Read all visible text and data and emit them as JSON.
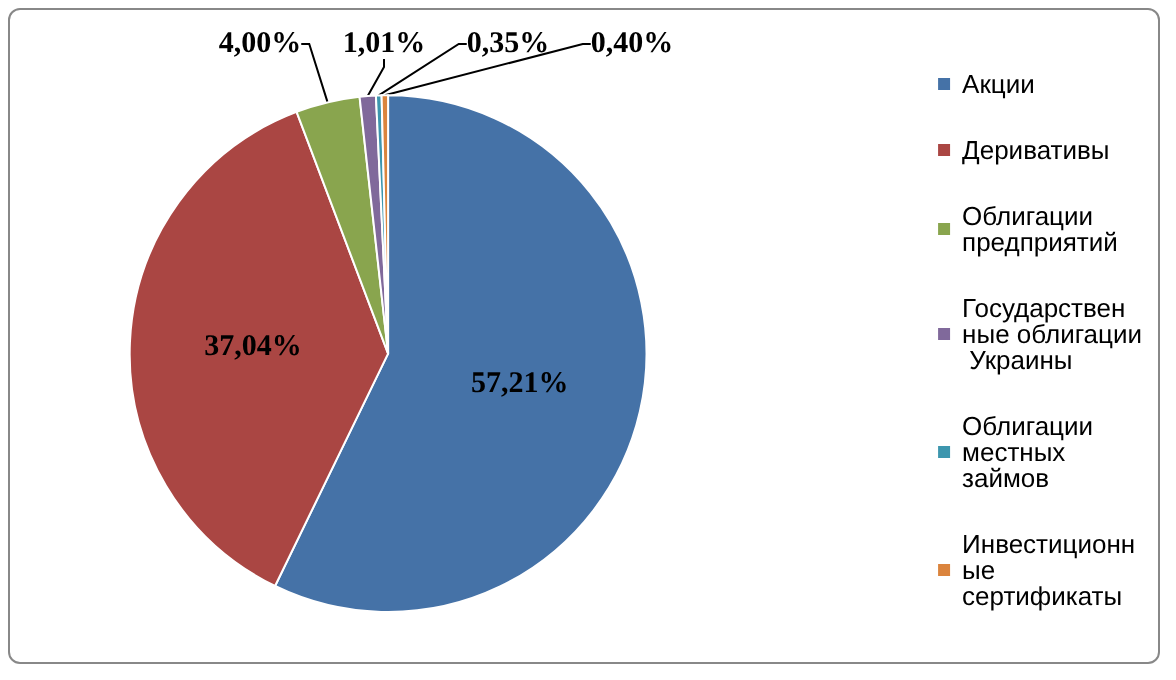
{
  "chart_data": {
    "type": "pie",
    "categories": [
      "Акции",
      "Деривативы",
      "Облигации предприятий",
      "Государственные облигации Украины",
      "Облигации местных займов",
      "Инвестиционные сертификаты"
    ],
    "values": [
      57.21,
      37.04,
      4.0,
      1.01,
      0.35,
      0.4
    ],
    "value_labels": [
      "57,21%",
      "37,04%",
      "4,00%",
      "1,01%",
      "0,35%",
      "0,40%"
    ],
    "colors": [
      "#4572a7",
      "#aa4643",
      "#89a54e",
      "#80699b",
      "#3d96ae",
      "#db843d"
    ],
    "legend": "right"
  }
}
